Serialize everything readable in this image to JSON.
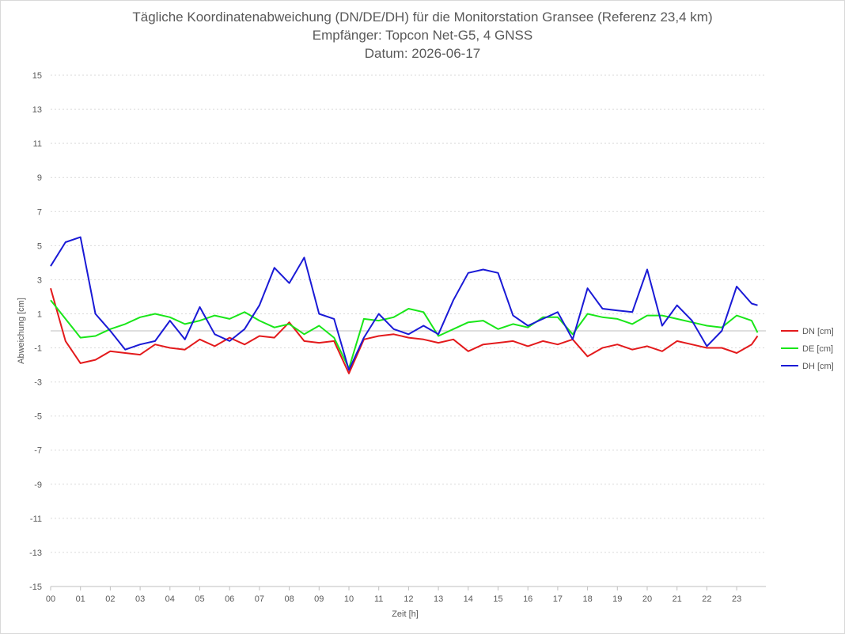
{
  "chart_data": {
    "type": "line",
    "title": "Tägliche Koordinatenabweichung (DN/DE/DH) für die Monitorstation Gransee (Referenz 23,4 km)",
    "subtitle": "Empfänger: Topcon Net-G5, 4 GNSS",
    "subtitle2": "Datum: 2026-06-17",
    "xlabel": "Zeit [h]",
    "ylabel": "Abweichung [cm]",
    "x_ticks": [
      "00",
      "01",
      "02",
      "03",
      "04",
      "05",
      "06",
      "07",
      "08",
      "09",
      "10",
      "11",
      "12",
      "13",
      "14",
      "15",
      "16",
      "17",
      "18",
      "19",
      "20",
      "21",
      "22",
      "23"
    ],
    "xlim": [
      0,
      24
    ],
    "y_ticks": [
      15,
      13,
      11,
      9,
      7,
      5,
      3,
      1,
      -1,
      -3,
      -5,
      -7,
      -9,
      -11,
      -13,
      -15
    ],
    "ylim": [
      -15,
      15
    ],
    "grid": true,
    "legend_position": "right",
    "x": [
      0,
      0.5,
      1,
      1.5,
      2,
      2.5,
      3,
      3.5,
      4,
      4.5,
      5,
      5.5,
      6,
      6.5,
      7,
      7.5,
      8,
      8.5,
      9,
      9.5,
      10,
      10.5,
      11,
      11.5,
      12,
      12.5,
      13,
      13.5,
      14,
      14.5,
      15,
      15.5,
      16,
      16.5,
      17,
      17.5,
      18,
      18.5,
      19,
      19.5,
      20,
      20.5,
      21,
      21.5,
      22,
      22.5,
      23,
      23.5,
      23.7
    ],
    "series": [
      {
        "name": "DN [cm]",
        "color": "#e31a1c",
        "values": [
          2.5,
          -0.6,
          -1.9,
          -1.7,
          -1.2,
          -1.3,
          -1.4,
          -0.8,
          -1.0,
          -1.1,
          -0.5,
          -0.9,
          -0.4,
          -0.8,
          -0.3,
          -0.4,
          0.5,
          -0.6,
          -0.7,
          -0.6,
          -2.5,
          -0.5,
          -0.3,
          -0.2,
          -0.4,
          -0.5,
          -0.7,
          -0.5,
          -1.2,
          -0.8,
          -0.7,
          -0.6,
          -0.9,
          -0.6,
          -0.8,
          -0.5,
          -1.5,
          -1.0,
          -0.8,
          -1.1,
          -0.9,
          -1.2,
          -0.6,
          -0.8,
          -1.0,
          -1.0,
          -1.3,
          -0.8,
          -0.3
        ]
      },
      {
        "name": "DE [cm]",
        "color": "#19e619",
        "values": [
          1.8,
          0.7,
          -0.4,
          -0.3,
          0.1,
          0.4,
          0.8,
          1.0,
          0.8,
          0.4,
          0.6,
          0.9,
          0.7,
          1.1,
          0.6,
          0.2,
          0.4,
          -0.2,
          0.3,
          -0.4,
          -2.2,
          0.7,
          0.6,
          0.8,
          1.3,
          1.1,
          -0.3,
          0.1,
          0.5,
          0.6,
          0.1,
          0.4,
          0.2,
          0.8,
          0.8,
          -0.2,
          1.0,
          0.8,
          0.7,
          0.4,
          0.9,
          0.9,
          0.7,
          0.5,
          0.3,
          0.2,
          0.9,
          0.6,
          -0.1
        ]
      },
      {
        "name": "DH [cm]",
        "color": "#1a1ad6",
        "values": [
          3.8,
          5.2,
          5.5,
          1.0,
          0.0,
          -1.1,
          -0.8,
          -0.6,
          0.6,
          -0.5,
          1.4,
          -0.2,
          -0.6,
          0.1,
          1.5,
          3.7,
          2.8,
          4.3,
          1.0,
          0.7,
          -2.3,
          -0.4,
          1.0,
          0.1,
          -0.2,
          0.3,
          -0.2,
          1.8,
          3.4,
          3.6,
          3.4,
          0.9,
          0.3,
          0.7,
          1.1,
          -0.5,
          2.5,
          1.3,
          1.2,
          1.1,
          3.6,
          0.3,
          1.5,
          0.6,
          -0.9,
          0.0,
          2.6,
          1.6,
          1.5
        ]
      }
    ]
  }
}
